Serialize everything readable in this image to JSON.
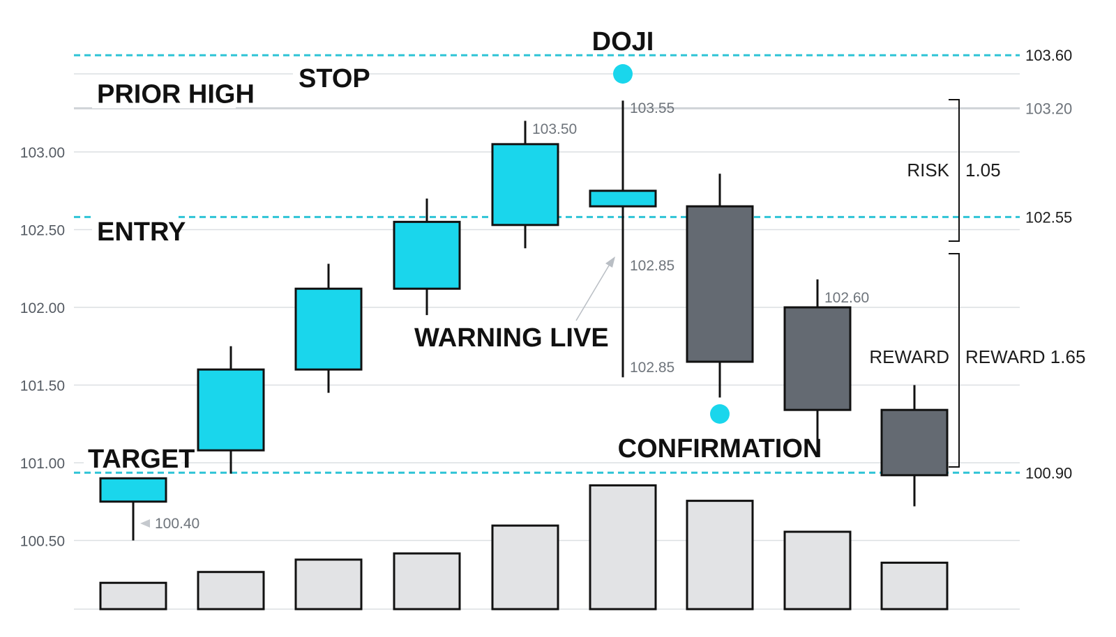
{
  "colors": {
    "bull": "#1ad6ec",
    "bear": "#646a72",
    "volume": "#e2e3e5",
    "level": "#2ec4d6",
    "grid": "#dcdfe2",
    "outline": "#111111"
  },
  "chart_data": {
    "type": "candlestick",
    "y_axis": {
      "ticks": [
        100.5,
        101.0,
        101.5,
        102.0,
        102.5,
        103.0
      ],
      "tick_labels": [
        "100.50",
        "101.00",
        "101.50",
        "102.00",
        "102.50",
        "103.00"
      ],
      "range": [
        100.0,
        104.0
      ],
      "grid": true
    },
    "candles": [
      {
        "open": 100.9,
        "high": 100.9,
        "low": 100.5,
        "close": 100.75,
        "direction": "bull"
      },
      {
        "open": 101.08,
        "high": 101.75,
        "low": 100.93,
        "close": 101.6,
        "direction": "bull"
      },
      {
        "open": 101.6,
        "high": 102.28,
        "low": 101.45,
        "close": 102.12,
        "direction": "bull"
      },
      {
        "open": 102.12,
        "high": 102.7,
        "low": 101.95,
        "close": 102.55,
        "direction": "bull"
      },
      {
        "open": 102.53,
        "high": 103.2,
        "low": 102.38,
        "close": 103.05,
        "direction": "bull"
      },
      {
        "open": 102.65,
        "high": 103.33,
        "low": 101.55,
        "close": 102.75,
        "direction": "bull"
      },
      {
        "open": 102.65,
        "high": 102.86,
        "low": 101.42,
        "close": 101.65,
        "direction": "bear"
      },
      {
        "open": 102.0,
        "high": 102.18,
        "low": 101.06,
        "close": 101.34,
        "direction": "bear"
      },
      {
        "open": 101.34,
        "high": 101.5,
        "low": 100.72,
        "close": 100.92,
        "direction": "bear"
      }
    ],
    "volume": [
      0.17,
      0.24,
      0.32,
      0.36,
      0.54,
      0.8,
      0.7,
      0.5,
      0.3
    ],
    "levels": [
      {
        "key": "stop",
        "label": "STOP",
        "value": 103.6,
        "label_right": "103.60"
      },
      {
        "key": "entry",
        "label": "ENTRY",
        "value": 102.55,
        "label_right": "102.55"
      },
      {
        "key": "target",
        "label": "TARGET",
        "value": 100.9,
        "label_right": "100.90"
      }
    ],
    "prior_high": {
      "label": "PRIOR HIGH",
      "value": 103.2,
      "label_right": "103.20"
    },
    "annotations": {
      "doji": "DOJI",
      "warning": "WARNING LIVE",
      "confirmation": "CONFIRMATION",
      "risk": "RISK",
      "risk_value": "1.05",
      "reward": "REWARD",
      "reward_value": "REWARD 1.65"
    },
    "price_labels": [
      {
        "candle": 0,
        "text": "100.40"
      },
      {
        "candle": 4,
        "text": "103.50"
      },
      {
        "candle": 5,
        "text": "103.55"
      },
      {
        "candle": 5,
        "text": "102.85"
      },
      {
        "candle": 5,
        "text": "102.85"
      },
      {
        "candle": 7,
        "text": "102.60"
      }
    ]
  }
}
